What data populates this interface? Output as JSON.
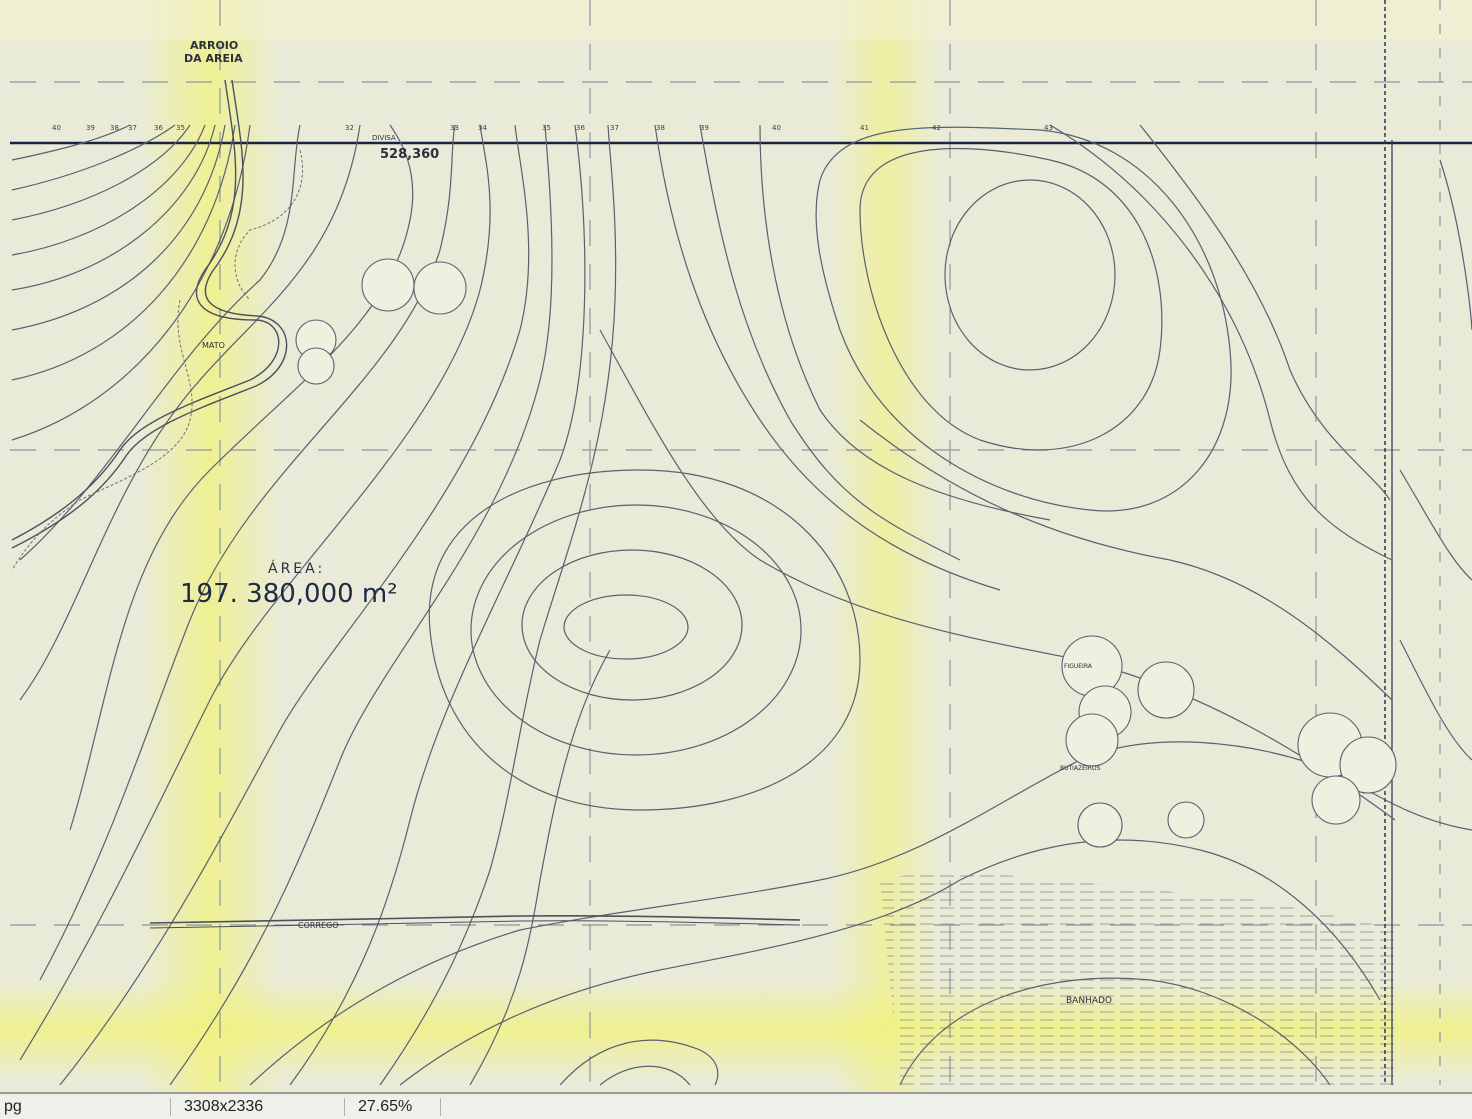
{
  "map": {
    "labels": {
      "arroio_line1": "ARROIO",
      "arroio_line2": "DA AREIA",
      "divisa": "DIVISA",
      "coordinate": "528,360",
      "mato": "MATO",
      "area_title": "ÁREA:",
      "area_value": "197. 380,000 m²",
      "corrego": "CORREGO",
      "banhado": "BANHADO",
      "figueira": "FIGUEIRA",
      "butiazeiros": "BUTIAZEIROS"
    },
    "contour_values_top": [
      "40",
      "39",
      "38",
      "37",
      "36",
      "35",
      "32",
      "33",
      "34",
      "35",
      "36",
      "37",
      "38",
      "39",
      "40",
      "41",
      "42",
      "43"
    ],
    "colors": {
      "paper": "#e9ebd8",
      "contour": "#5a6070",
      "boundary": "#1a2340",
      "highlight": "#f1f27c"
    }
  },
  "statusbar": {
    "filename": "pg",
    "dimensions": "3308x2336",
    "zoom": "27.65%"
  }
}
